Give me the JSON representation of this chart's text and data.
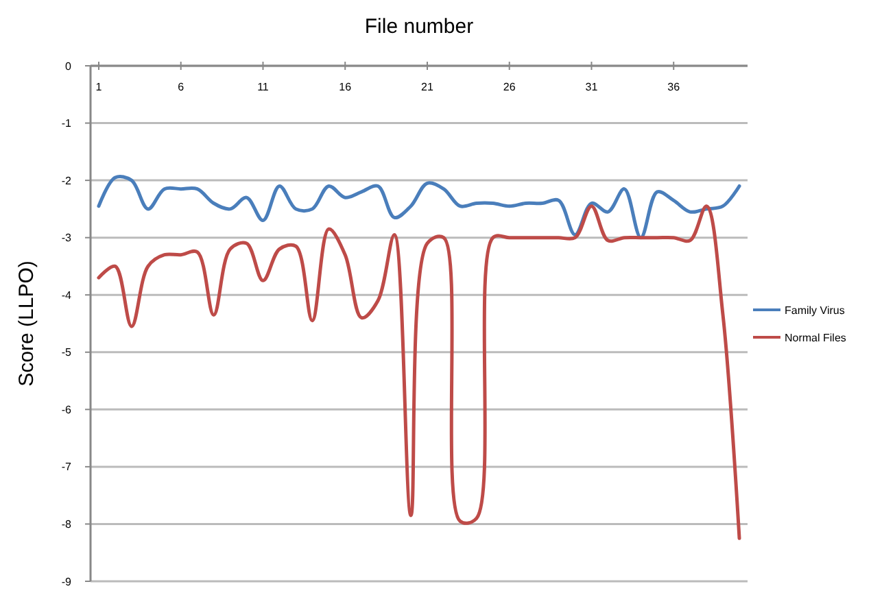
{
  "chart_data": {
    "type": "line",
    "xlabel": "File number",
    "ylabel": "Score (LLPO)",
    "x": [
      1,
      2,
      3,
      4,
      5,
      6,
      7,
      8,
      9,
      10,
      11,
      12,
      13,
      14,
      15,
      16,
      17,
      18,
      19,
      20,
      21,
      22,
      23,
      24,
      25,
      26,
      27,
      28,
      29,
      30,
      31,
      32,
      33,
      34,
      35,
      36,
      37,
      38,
      39,
      40
    ],
    "xlim": [
      0.5,
      40.5
    ],
    "xticks": [
      1,
      6,
      11,
      16,
      21,
      26,
      31,
      36
    ],
    "ylim": [
      -9,
      0
    ],
    "yticks": [
      0,
      -1,
      -2,
      -3,
      -4,
      -5,
      -6,
      -7,
      -8,
      -9
    ],
    "grid": "y",
    "legend": "right",
    "marker": "none",
    "line_style": "solid",
    "series": [
      {
        "name": "Family Virus",
        "color": "#4a7ebb",
        "values": [
          -2.45,
          -1.95,
          -2.0,
          -2.5,
          -2.15,
          -2.15,
          -2.15,
          -2.4,
          -2.5,
          -2.3,
          -2.7,
          -2.1,
          -2.5,
          -2.5,
          -2.1,
          -2.3,
          -2.2,
          -2.1,
          -2.65,
          -2.45,
          -2.05,
          -2.15,
          -2.45,
          -2.4,
          -2.4,
          -2.45,
          -2.4,
          -2.4,
          -2.35,
          -2.95,
          -2.4,
          -2.55,
          -2.15,
          -3.0,
          -2.2,
          -2.35,
          -2.55,
          -2.5,
          -2.45,
          -2.1
        ]
      },
      {
        "name": "Normal Files",
        "color": "#be4b48",
        "values": [
          -3.7,
          -3.5,
          -4.55,
          -3.5,
          -3.3,
          -3.3,
          -3.25,
          -4.35,
          -3.2,
          -3.1,
          -3.75,
          -3.2,
          -3.15,
          -4.45,
          -2.85,
          -3.3,
          -4.4,
          -4.1,
          -2.95,
          -7.85,
          -3.1,
          -3.0,
          -7.95,
          -7.9,
          -3.0,
          -3.0,
          -3.0,
          -3.0,
          -3.0,
          -3.0,
          -2.45,
          -3.05,
          -3.0,
          -3.0,
          -3.0,
          -3.0,
          -3.05,
          -2.45,
          -4.35,
          -8.25
        ]
      }
    ]
  }
}
